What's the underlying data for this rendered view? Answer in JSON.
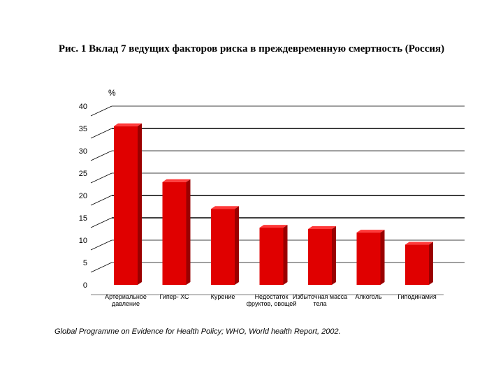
{
  "title": "Рис. 1 Вклад 7 ведущих факторов риска в преждевременную смертность (Россия)",
  "source": "Global Programme on Evidence for Health Policy; WHO, World health Report, 2002.",
  "colors": {
    "bar": "#e00000",
    "bar_dark": "#9a0000",
    "bar_top": "#ff3a3a"
  },
  "chart_data": {
    "type": "bar",
    "title": "Рис. 1 Вклад 7 ведущих факторов риска в преждевременную смертность (Россия)",
    "ylabel": "%",
    "xlabel": "",
    "ylim": [
      0,
      40
    ],
    "yticks": [
      0,
      5,
      10,
      15,
      20,
      25,
      30,
      35,
      40
    ],
    "grid": true,
    "categories": [
      "Артериальное давление",
      "Гипер- ХС",
      "Курение",
      "Недостаток фруктов, овощей",
      "Избыточная масса тела",
      "Алкоголь",
      "Гиподинамия"
    ],
    "values": [
      35.5,
      23,
      17,
      12.8,
      12.5,
      11.7,
      9
    ]
  }
}
